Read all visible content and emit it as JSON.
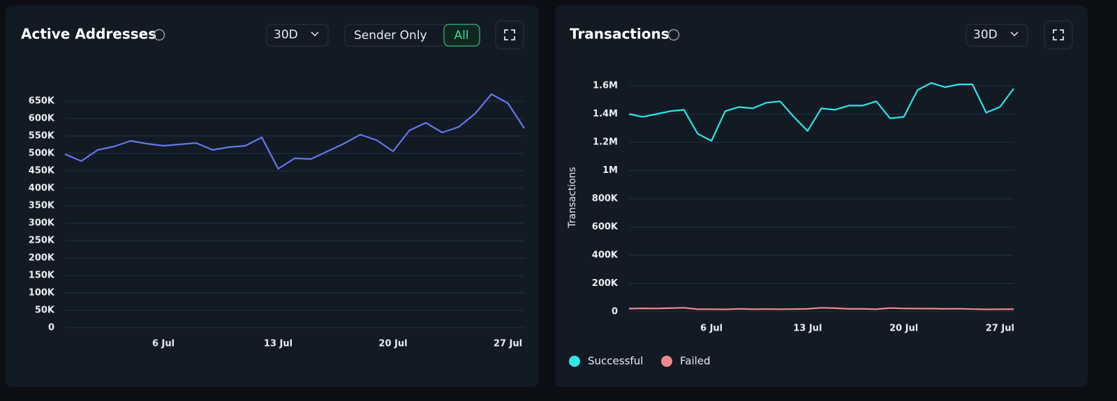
{
  "chart_data": [
    {
      "type": "line",
      "title": "Active Addresses",
      "range_selector": "30D",
      "toggle": [
        "Sender Only",
        "All"
      ],
      "categories": [
        null,
        null,
        null,
        null,
        null,
        null,
        "6 Jul",
        null,
        null,
        null,
        null,
        null,
        null,
        "13 Jul",
        null,
        null,
        null,
        null,
        null,
        null,
        "20 Jul",
        null,
        null,
        null,
        null,
        null,
        null,
        "27 Jul",
        null
      ],
      "series": [
        {
          "name": "Active Addresses",
          "color": "#6677ee",
          "values": [
            498000,
            478000,
            510000,
            520000,
            536000,
            528000,
            522000,
            526000,
            530000,
            510000,
            518000,
            522000,
            546000,
            456000,
            486000,
            484000,
            506000,
            528000,
            554000,
            538000,
            506000,
            566000,
            588000,
            560000,
            576000,
            614000,
            670000,
            644000,
            572000
          ]
        }
      ],
      "ylim": [
        0,
        650000
      ],
      "yticks": [
        0,
        {
          "value": 50000,
          "label": "50K"
        },
        {
          "value": 100000,
          "label": "100K"
        },
        {
          "value": 150000,
          "label": "150K"
        },
        {
          "value": 200000,
          "label": "200K"
        },
        {
          "value": 250000,
          "label": "250K"
        },
        {
          "value": 300000,
          "label": "300K"
        },
        {
          "value": 350000,
          "label": "350K"
        },
        {
          "value": 400000,
          "label": "400K"
        },
        {
          "value": 450000,
          "label": "450K"
        },
        {
          "value": 500000,
          "label": "500K"
        },
        {
          "value": 550000,
          "label": "550K"
        },
        {
          "value": 600000,
          "label": "600K"
        },
        {
          "value": 650000,
          "label": "650K"
        }
      ],
      "grid": true
    },
    {
      "type": "line",
      "title": "Transactions",
      "range_selector": "30D",
      "y_label": "Transactions",
      "categories": [
        null,
        null,
        null,
        null,
        null,
        null,
        "6 Jul",
        null,
        null,
        null,
        null,
        null,
        null,
        "13 Jul",
        null,
        null,
        null,
        null,
        null,
        null,
        "20 Jul",
        null,
        null,
        null,
        null,
        null,
        null,
        "27 Jul",
        null
      ],
      "series": [
        {
          "name": "Successful",
          "color": "#2ee6e6",
          "values": [
            1400000,
            1380000,
            1400000,
            1420000,
            1430000,
            1260000,
            1210000,
            1420000,
            1450000,
            1440000,
            1480000,
            1490000,
            1380000,
            1280000,
            1440000,
            1430000,
            1460000,
            1460000,
            1490000,
            1370000,
            1380000,
            1570000,
            1620000,
            1590000,
            1610000,
            1610000,
            1410000,
            1450000,
            1580000
          ]
        },
        {
          "name": "Failed",
          "color": "#f08a8a",
          "values": [
            22000,
            24000,
            23000,
            25000,
            28000,
            18000,
            18000,
            17000,
            20000,
            18000,
            19000,
            18000,
            19000,
            20000,
            28000,
            25000,
            20000,
            20000,
            18000,
            26000,
            23000,
            22000,
            22000,
            20000,
            21000,
            19000,
            17000,
            18000,
            18000
          ]
        }
      ],
      "ylim": [
        0,
        1600000
      ],
      "yticks": [
        0,
        {
          "value": 200000,
          "label": "200K"
        },
        {
          "value": 400000,
          "label": "400K"
        },
        {
          "value": 600000,
          "label": "600K"
        },
        {
          "value": 800000,
          "label": "800K"
        },
        {
          "value": 1000000,
          "label": "1M"
        },
        {
          "value": 1200000,
          "label": "1.2M"
        },
        {
          "value": 1400000,
          "label": "1.4M"
        },
        {
          "value": 1600000,
          "label": "1.6M"
        }
      ],
      "grid": true,
      "legend": "bottom"
    }
  ]
}
